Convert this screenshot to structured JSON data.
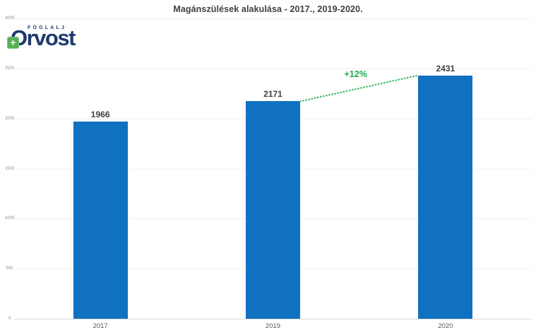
{
  "logo": {
    "top_text": "FOGLALJ",
    "main_text": "Orvost",
    "plus_glyph": "+",
    "navy_color": "#1e3a6c",
    "green_color": "#57b057"
  },
  "chart_data": {
    "type": "bar",
    "title": "Magánszülések alakulása - 2017., 2019-2020.",
    "categories": [
      "2017",
      "2019",
      "2020"
    ],
    "values": [
      1966,
      2171,
      2431
    ],
    "value_labels": [
      "1966",
      "2171",
      "2431"
    ],
    "xlabel": "",
    "ylabel": "",
    "ylim": [
      0,
      3000
    ],
    "yticks": [
      0,
      500,
      1000,
      1500,
      2000,
      2500,
      3000
    ],
    "grid": "horizontal",
    "legend": "none",
    "annotation": {
      "text": "+12%",
      "from_index": 1,
      "to_index": 2,
      "style": "dotted-line"
    },
    "colors": {
      "bar": "#1171c1",
      "accent_green": "#1ca951",
      "trend_line": "#2eb356",
      "title_text": "#3f3f3f",
      "axis_text": "#595959",
      "ytick_text": "#8e8e8e",
      "gridline": "#f0f0f0",
      "axis_line": "#d9d9d9"
    }
  }
}
